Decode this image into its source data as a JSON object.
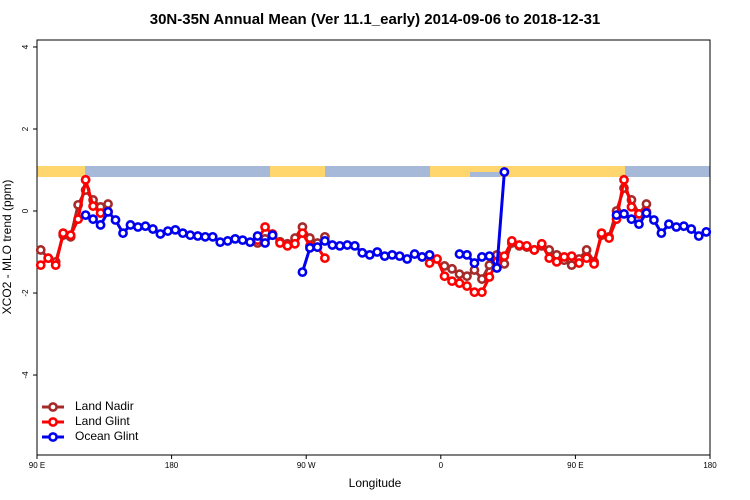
{
  "chart_data": {
    "type": "line",
    "title": "30N-35N Annual Mean (Ver 11.1_early)   2014-09-06 to 2018-12-31",
    "xlabel": "Longitude",
    "ylabel": "XCO2 - MLO trend (ppm)",
    "x": [
      92.5,
      97.5,
      102.5,
      107.5,
      112.5,
      117.5,
      122.5,
      127.5,
      132.5,
      137.5,
      142.5,
      147.5,
      152.5,
      157.5,
      162.5,
      167.5,
      172.5,
      177.5,
      182.5,
      187.5,
      192.5,
      197.5,
      202.5,
      207.5,
      212.5,
      217.5,
      222.5,
      227.5,
      232.5,
      237.5,
      242.5,
      247.5,
      252.5,
      257.5,
      262.5,
      267.5,
      272.5,
      277.5,
      282.5,
      287.5,
      292.5,
      297.5,
      302.5,
      307.5,
      312.5,
      317.5,
      322.5,
      327.5,
      332.5,
      337.5,
      342.5,
      347.5,
      352.5,
      357.5,
      362.5,
      367.5,
      372.5,
      377.5,
      382.5,
      387.5,
      392.5,
      397.5,
      402.5,
      407.5,
      412.5,
      417.5,
      422.5,
      427.5,
      432.5,
      437.5,
      442.5,
      447.5,
      452.5,
      457.5,
      462.5,
      467.5,
      472.5,
      477.5,
      482.5,
      487.5,
      492.5,
      497.5,
      502.5,
      507.5,
      512.5,
      517.5,
      522.5,
      527.5,
      532.5,
      537.5
    ],
    "series": [
      {
        "name": "Land Nadir",
        "color": "#a52a2a",
        "values": [
          -0.95,
          -1.15,
          -1.24,
          -0.59,
          -0.63,
          0.15,
          0.51,
          0.27,
          0.1,
          0.17,
          null,
          null,
          null,
          null,
          null,
          null,
          null,
          null,
          null,
          null,
          null,
          null,
          null,
          null,
          null,
          null,
          null,
          null,
          null,
          -0.78,
          -0.68,
          -0.59,
          -0.75,
          -0.8,
          -0.66,
          -0.39,
          -0.66,
          -0.78,
          -0.63,
          null,
          null,
          null,
          null,
          null,
          null,
          null,
          null,
          null,
          null,
          null,
          null,
          null,
          null,
          null,
          -1.34,
          -1.41,
          -1.54,
          -1.59,
          -1.44,
          -1.66,
          -1.32,
          -1.07,
          -1.29,
          -0.78,
          -0.85,
          -0.88,
          -0.95,
          -0.85,
          -0.95,
          -1.07,
          -1.2,
          -1.32,
          -1.17,
          -0.95,
          -1.24,
          -0.59,
          -0.63,
          0.0,
          0.56,
          0.27,
          -0.07,
          0.17,
          null,
          null,
          null,
          null,
          null,
          null,
          null,
          null
        ]
      },
      {
        "name": "Land Glint",
        "color": "#ff0000",
        "values": [
          -1.32,
          -1.15,
          -1.32,
          -0.54,
          -0.59,
          -0.2,
          0.76,
          0.12,
          -0.05,
          -0.02,
          null,
          null,
          null,
          null,
          null,
          null,
          null,
          null,
          null,
          null,
          null,
          null,
          null,
          null,
          null,
          null,
          null,
          null,
          null,
          -0.71,
          -0.39,
          -0.56,
          -0.78,
          -0.85,
          -0.8,
          -0.54,
          -0.85,
          -0.88,
          -1.15,
          null,
          null,
          null,
          null,
          null,
          null,
          null,
          null,
          null,
          null,
          null,
          null,
          null,
          -1.27,
          -1.17,
          -1.59,
          -1.71,
          -1.76,
          -1.83,
          -1.98,
          -1.98,
          -1.61,
          -1.24,
          -1.1,
          -0.73,
          -0.83,
          -0.85,
          -0.95,
          -0.8,
          -1.15,
          -1.24,
          -1.12,
          -1.1,
          -1.27,
          -1.15,
          -1.29,
          -0.54,
          -0.66,
          -0.2,
          0.76,
          0.1,
          -0.07,
          -0.02,
          null,
          null,
          null,
          null,
          null,
          null,
          null,
          null
        ]
      },
      {
        "name": "Ocean Glint",
        "color": "#0000ee",
        "values": [
          null,
          null,
          null,
          null,
          null,
          null,
          -0.1,
          -0.2,
          -0.34,
          -0.02,
          -0.22,
          -0.54,
          -0.34,
          -0.39,
          -0.37,
          -0.44,
          -0.56,
          -0.49,
          -0.46,
          -0.54,
          -0.59,
          -0.61,
          -0.63,
          -0.63,
          -0.76,
          -0.73,
          -0.68,
          -0.71,
          -0.76,
          -0.61,
          -0.78,
          -0.59,
          null,
          null,
          null,
          -1.49,
          -0.9,
          -0.88,
          -0.73,
          -0.83,
          -0.85,
          -0.83,
          -0.85,
          -1.02,
          -1.07,
          -1.0,
          -1.1,
          -1.07,
          -1.1,
          -1.17,
          -1.05,
          -1.12,
          -1.07,
          null,
          null,
          null,
          -1.05,
          -1.07,
          -1.27,
          -1.12,
          -1.1,
          -1.39,
          0.95,
          null,
          null,
          null,
          null,
          null,
          null,
          null,
          null,
          null,
          null,
          null,
          null,
          null,
          null,
          -0.1,
          -0.07,
          -0.2,
          -0.32,
          -0.05,
          -0.22,
          -0.54,
          -0.32,
          -0.39,
          -0.37,
          -0.44,
          -0.61,
          -0.51
        ]
      }
    ],
    "xlim": [
      90,
      540
    ],
    "xticks": [
      {
        "value": 90,
        "label": "90 E"
      },
      180,
      {
        "value": 270,
        "label": "90 W"
      },
      {
        "value": 360,
        "label": "0"
      },
      {
        "value": 450,
        "label": "90 E"
      },
      {
        "value": 540,
        "label": "180"
      }
    ],
    "ylim": [
      -5.95,
      4.17
    ],
    "yticks": [
      -4,
      -2,
      0,
      2,
      4
    ],
    "legend": "bottom-left",
    "grid": false
  }
}
